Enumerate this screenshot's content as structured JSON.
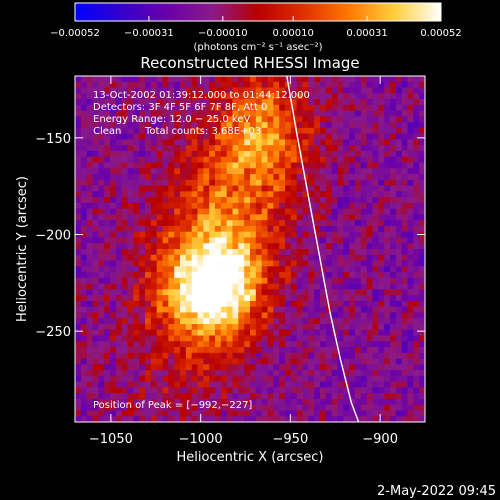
{
  "chart_data": {
    "type": "heatmap",
    "title": "Reconstructed RHESSI Image",
    "xlabel": "Heliocentric X (arcsec)",
    "ylabel": "Heliocentric Y (arcsec)",
    "xlim": [
      -1070,
      -875
    ],
    "ylim": [
      -297,
      -118
    ],
    "x_ticks": [
      -1050,
      -1000,
      -950,
      -900
    ],
    "x_tick_labels": [
      "−1050",
      "−1000",
      "−950",
      "−900"
    ],
    "y_ticks": [
      -150,
      -200,
      -250
    ],
    "y_tick_labels": [
      "−150",
      "−200",
      "−250"
    ],
    "colorbar": {
      "range": [
        -0.00052,
        0.00052
      ],
      "ticks": [
        -0.00052,
        -0.00031,
        -0.0001,
        0.0001,
        0.00031,
        0.00052
      ],
      "tick_labels": [
        "−0.00052",
        "−0.00031",
        "−0.00010",
        "0.00010",
        "0.00031",
        "0.00052"
      ],
      "unit_label": "(photons cm⁻² s⁻¹ asec⁻²)",
      "colormap": [
        "#0000ff",
        "#3300cc",
        "#6a00aa",
        "#8a1a8a",
        "#b80000",
        "#e03000",
        "#ff7a00",
        "#ffd040",
        "#ffffff"
      ]
    },
    "annotations": {
      "time_range": "13-Oct-2002 01:39:12.000 to 01:44:12.000",
      "detectors": "Detectors: 3F 4F 5F 6F 7F 8F, Att 0",
      "energy_range": "Energy Range: 12.0 − 25.0 keV",
      "method": "Clean",
      "total_counts": "Total counts: 3.68E+03",
      "peak": "Position of Peak = [−992,−227]"
    },
    "peak_position": [
      -992,
      -227
    ],
    "limb_curve": {
      "x": [
        -952,
        -946,
        -940,
        -934,
        -928,
        -922,
        -916,
        -912
      ],
      "y": [
        -118,
        -150,
        -180,
        -210,
        -240,
        -265,
        -287,
        -297
      ]
    },
    "grid": false
  },
  "footer": {
    "timestamp": "2-May-2022 09:45"
  }
}
